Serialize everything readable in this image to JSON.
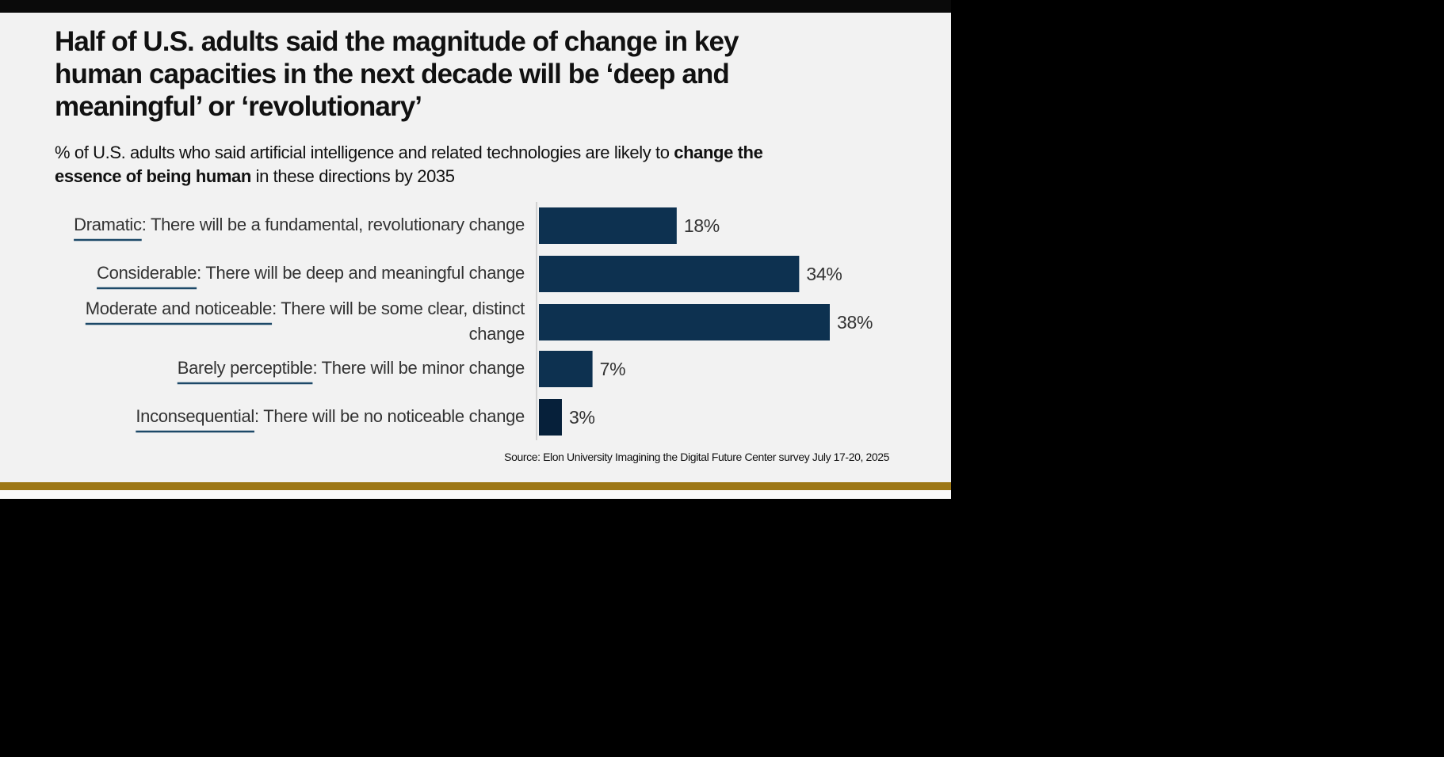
{
  "header": {
    "title": "Half of U.S. adults said the magnitude of change in key human capacities in the next decade will be ‘deep and meaningful’ or ‘revolutionary’",
    "subtitle_pre": "% of U.S. adults who said artificial intelligence and related technologies are likely to ",
    "subtitle_bold": "change the essence of being human",
    "subtitle_post": " in these directions by 2035"
  },
  "source": "Source: Elon University Imagining the Digital Future Center survey July 17-20, 2025",
  "colors": {
    "bar": "#0d3150",
    "bar_last": "#06203a",
    "underline": "#1d4968",
    "gold": "#9d7716",
    "axis": "#c8c8c8"
  },
  "chart_data": {
    "type": "bar",
    "orientation": "horizontal",
    "title": "Half of U.S. adults said the magnitude of change in key human capacities in the next decade will be ‘deep and meaningful’ or ‘revolutionary’",
    "subtitle": "% of U.S. adults who said artificial intelligence and related technologies are likely to change the essence of being human in these directions by 2035",
    "categories": [
      {
        "term": "Dramatic",
        "desc": ": There will be a fundamental, revolutionary change"
      },
      {
        "term": "Considerable",
        "desc": ": There will be deep and meaningful change"
      },
      {
        "term": "Moderate and noticeable",
        "desc": ": There will be some clear, distinct change"
      },
      {
        "term": "Barely perceptible",
        "desc": ": There will be minor change"
      },
      {
        "term": "Inconsequential",
        "desc": ": There will be no noticeable change"
      }
    ],
    "values": [
      18,
      34,
      38,
      7,
      3
    ],
    "value_labels": [
      "18%",
      "34%",
      "38%",
      "7%",
      "3%"
    ],
    "unit": "%",
    "xlim": [
      0,
      38
    ],
    "grid": false,
    "legend": "none"
  }
}
